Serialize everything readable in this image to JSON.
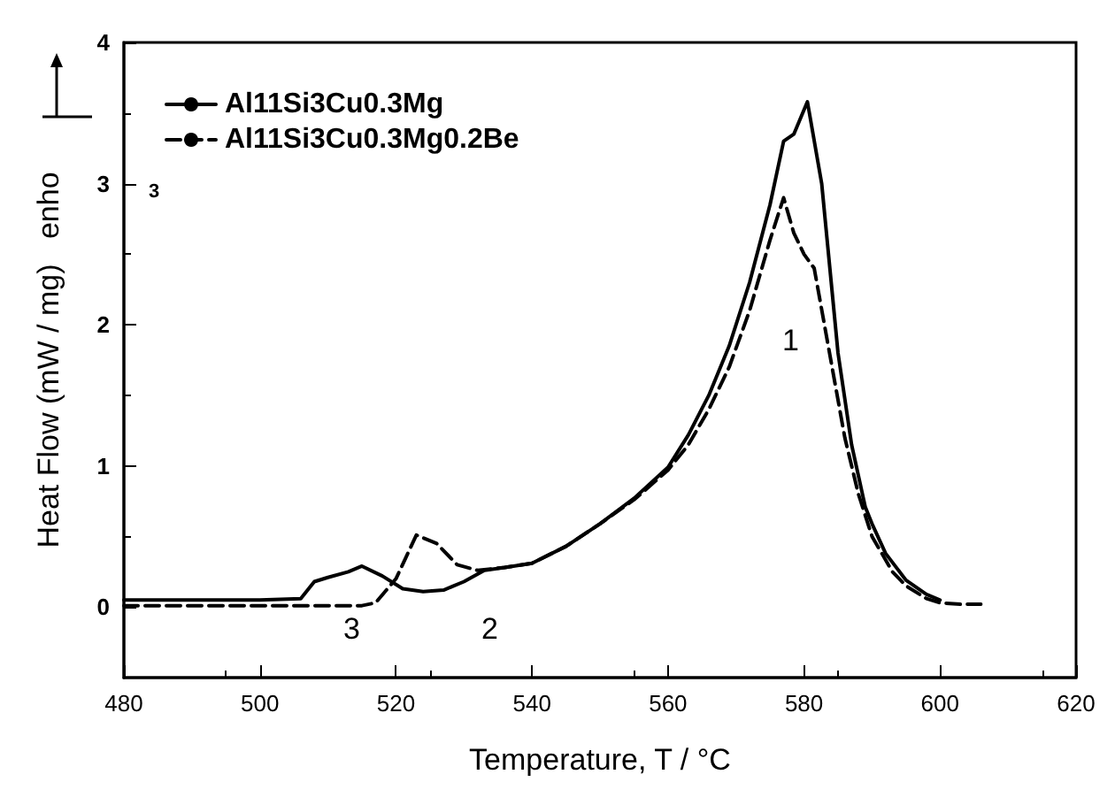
{
  "chart_data": {
    "type": "line",
    "xlabel": "Temperature, T / °C",
    "ylabel": "Heat Flow (mW / mg)   enho",
    "xlim": [
      480,
      620
    ],
    "xticks": [
      480,
      500,
      520,
      540,
      560,
      580,
      600,
      620
    ],
    "ylim": [
      -0.5,
      4
    ],
    "yticks": [
      0,
      1,
      2,
      3,
      4
    ],
    "grid": false,
    "legend": "top left",
    "marker": "none",
    "series": [
      {
        "name": "Al11Si3Cu0.3Mg",
        "color": "#000000",
        "line_style": "solid",
        "x": [
          480,
          490,
          500,
          506,
          508,
          510,
          513,
          515,
          518,
          521,
          524,
          527,
          530,
          533,
          536,
          540,
          545,
          550,
          555,
          560,
          563,
          566,
          569,
          572,
          575,
          577,
          578.5,
          580.5,
          582.6,
          585,
          587,
          589,
          590,
          592,
          595,
          598,
          600
        ],
        "values": [
          0.05,
          0.05,
          0.05,
          0.06,
          0.18,
          0.21,
          0.25,
          0.29,
          0.22,
          0.13,
          0.11,
          0.12,
          0.18,
          0.26,
          0.28,
          0.31,
          0.43,
          0.59,
          0.77,
          0.99,
          1.22,
          1.5,
          1.85,
          2.3,
          2.85,
          3.3,
          3.35,
          3.58,
          3.0,
          1.8,
          1.15,
          0.71,
          0.59,
          0.38,
          0.19,
          0.09,
          0.05
        ]
      },
      {
        "name": "Al11Si3Cu0.3Mg0.2Be",
        "color": "#000000",
        "line_style": "dashed",
        "x": [
          480,
          490,
          500,
          510,
          515,
          517,
          520,
          523,
          526,
          529,
          532,
          536,
          540,
          545,
          550,
          555,
          560,
          563,
          566,
          569,
          572,
          575,
          577,
          578.5,
          580,
          581.5,
          583,
          586,
          588,
          590,
          593,
          595,
          598,
          600,
          603,
          606
        ],
        "values": [
          0.01,
          0.01,
          0.01,
          0.01,
          0.01,
          0.03,
          0.2,
          0.51,
          0.45,
          0.3,
          0.26,
          0.28,
          0.31,
          0.43,
          0.59,
          0.76,
          0.97,
          1.15,
          1.4,
          1.7,
          2.1,
          2.6,
          2.9,
          2.65,
          2.5,
          2.4,
          2.0,
          1.2,
          0.8,
          0.5,
          0.25,
          0.15,
          0.06,
          0.03,
          0.02,
          0.02
        ]
      }
    ],
    "annotations": [
      "1",
      "2",
      "3",
      "3"
    ]
  }
}
